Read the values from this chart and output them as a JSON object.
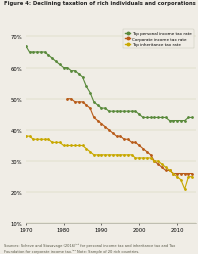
{
  "title": "Figure 4: Declining taxation of rich individuals and corporations",
  "legend_labels": [
    "Top personal income tax rate",
    "Corporate income tax rate",
    "Top inheritance tax rate"
  ],
  "legend_colors": [
    "#5a8a3c",
    "#b85c1a",
    "#c8a800"
  ],
  "ylim": [
    10,
    73
  ],
  "yticks": [
    10,
    20,
    30,
    40,
    50,
    60,
    70
  ],
  "xlim": [
    1970,
    2015
  ],
  "xticks": [
    1970,
    1980,
    1990,
    2000,
    2010
  ],
  "background_color": "#f0ede6",
  "footnote": "Sources: Scheve and Stasavage (2016)ⁱ²³ for personal income tax and inheritance tax and Tax\nFoundation for corporate income tax.ⁱ²⁴ Note: Sample of 20 rich countries.",
  "personal_income": {
    "years": [
      1970,
      1971,
      1972,
      1973,
      1974,
      1975,
      1976,
      1977,
      1978,
      1979,
      1980,
      1981,
      1982,
      1983,
      1984,
      1985,
      1986,
      1987,
      1988,
      1989,
      1990,
      1991,
      1992,
      1993,
      1994,
      1995,
      1996,
      1997,
      1998,
      1999,
      2000,
      2001,
      2002,
      2003,
      2004,
      2005,
      2006,
      2007,
      2008,
      2009,
      2010,
      2011,
      2012,
      2013,
      2014
    ],
    "values": [
      67,
      65,
      65,
      65,
      65,
      65,
      64,
      63,
      62,
      61,
      60,
      60,
      59,
      59,
      58,
      57,
      54,
      52,
      49,
      48,
      47,
      47,
      46,
      46,
      46,
      46,
      46,
      46,
      46,
      46,
      45,
      44,
      44,
      44,
      44,
      44,
      44,
      44,
      43,
      43,
      43,
      43,
      43,
      44,
      44
    ]
  },
  "corporate_income": {
    "years": [
      1981,
      1982,
      1983,
      1984,
      1985,
      1986,
      1987,
      1988,
      1989,
      1990,
      1991,
      1992,
      1993,
      1994,
      1995,
      1996,
      1997,
      1998,
      1999,
      2000,
      2001,
      2002,
      2003,
      2004,
      2005,
      2006,
      2007,
      2008,
      2009,
      2010,
      2011,
      2012,
      2013,
      2014
    ],
    "values": [
      50,
      50,
      49,
      49,
      49,
      48,
      47,
      44,
      43,
      42,
      41,
      40,
      39,
      38,
      38,
      37,
      37,
      36,
      36,
      35,
      34,
      33,
      32,
      30,
      29,
      28,
      27,
      27,
      26,
      26,
      26,
      26,
      26,
      26
    ]
  },
  "inheritance": {
    "years": [
      1970,
      1971,
      1972,
      1973,
      1974,
      1975,
      1976,
      1977,
      1978,
      1979,
      1980,
      1981,
      1982,
      1983,
      1984,
      1985,
      1986,
      1987,
      1988,
      1989,
      1990,
      1991,
      1992,
      1993,
      1994,
      1995,
      1996,
      1997,
      1998,
      1999,
      2000,
      2001,
      2002,
      2003,
      2004,
      2005,
      2006,
      2007,
      2008,
      2009,
      2010,
      2011,
      2012,
      2013,
      2014
    ],
    "values": [
      38,
      38,
      37,
      37,
      37,
      37,
      37,
      36,
      36,
      36,
      35,
      35,
      35,
      35,
      35,
      35,
      34,
      33,
      32,
      32,
      32,
      32,
      32,
      32,
      32,
      32,
      32,
      32,
      32,
      31,
      31,
      31,
      31,
      31,
      30,
      30,
      29,
      28,
      27,
      26,
      25,
      24,
      21,
      25,
      25
    ]
  }
}
